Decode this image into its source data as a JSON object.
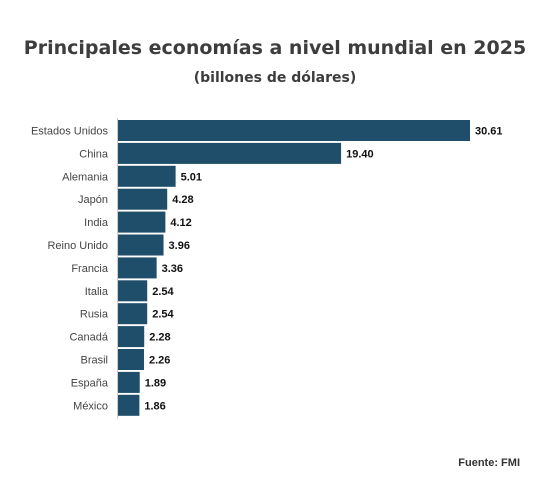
{
  "chart_data": {
    "type": "bar",
    "orientation": "horizontal",
    "title": "Principales economías a nivel mundial en 2025",
    "subtitle": "(billones de dólares)",
    "categories": [
      "Estados Unidos",
      "China",
      "Alemania",
      "Japón",
      "India",
      "Reino Unido",
      "Francia",
      "Italia",
      "Rusia",
      "Canadá",
      "Brasil",
      "España",
      "México"
    ],
    "values": [
      30.61,
      19.4,
      5.01,
      4.28,
      4.12,
      3.96,
      3.36,
      2.54,
      2.54,
      2.28,
      2.26,
      1.89,
      1.86
    ],
    "value_labels": [
      "30.61",
      "19.40",
      "5.01",
      "4.28",
      "4.12",
      "3.96",
      "3.36",
      "2.54",
      "2.54",
      "2.28",
      "2.26",
      "1.89",
      "1.86"
    ],
    "xlim": [
      0,
      30.61
    ],
    "grid": false,
    "legend": "none",
    "bar_color": "#1f4e6b",
    "source": "Fuente: FMI"
  }
}
